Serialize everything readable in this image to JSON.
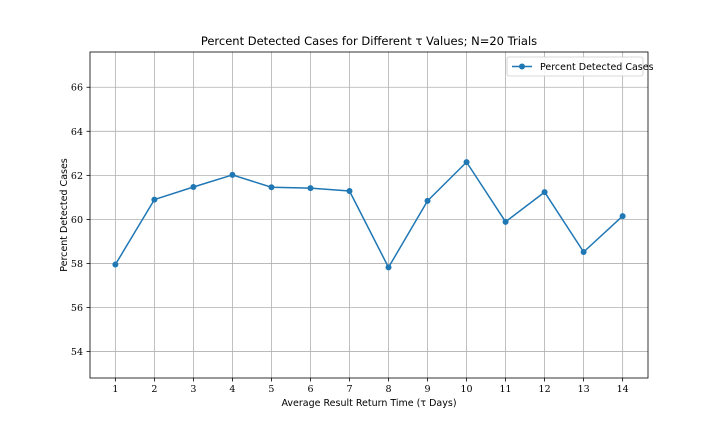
{
  "chart_data": {
    "type": "line",
    "title": "Percent Detected Cases for Different τ Values; N=20 Trials",
    "xlabel": "Average Result Return Time (τ Days)",
    "ylabel": "Percent Detected Cases",
    "x": [
      1,
      2,
      3,
      4,
      5,
      6,
      7,
      8,
      9,
      10,
      11,
      12,
      13,
      14
    ],
    "series": [
      {
        "name": "Percent Detected Cases",
        "color": "#1f77b4",
        "marker": "circle",
        "values": [
          57.95,
          60.9,
          61.47,
          62.02,
          61.46,
          61.42,
          61.29,
          57.82,
          60.84,
          62.6,
          59.89,
          61.24,
          58.52,
          60.15
        ]
      }
    ],
    "xticks": [
      1,
      2,
      3,
      4,
      5,
      6,
      7,
      8,
      9,
      10,
      11,
      12,
      13,
      14
    ],
    "yticks": [
      54,
      56,
      58,
      60,
      62,
      64,
      66
    ],
    "xlim": [
      0.35,
      14.65
    ],
    "ylim": [
      52.8,
      67.6
    ],
    "grid": true,
    "legend_position": "top-right"
  }
}
